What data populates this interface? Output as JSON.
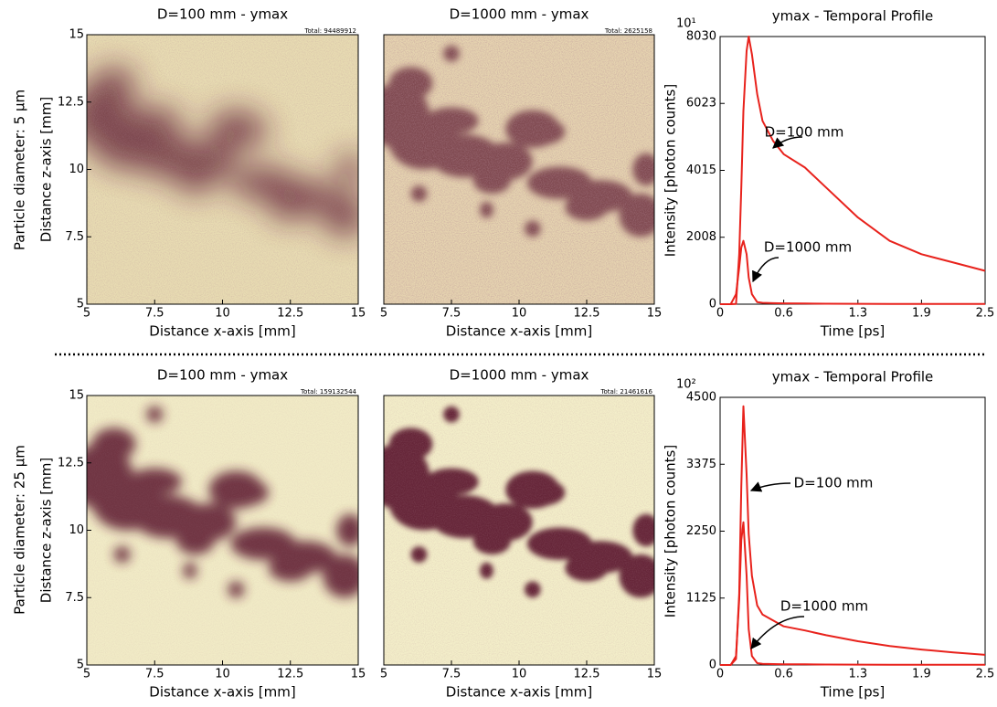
{
  "row_labels": [
    "Particle diameter: 5 µm",
    "Particle diameter: 25 µm"
  ],
  "chart_data": [
    {
      "type": "heatmap",
      "title": "D=100 mm - ymax",
      "total": "Total: 94489912",
      "xlabel": "Distance x-axis [mm]",
      "ylabel": "Distance z-axis [mm]",
      "xlim": [
        5,
        15
      ],
      "ylim": [
        5,
        15
      ],
      "xticks": [
        5,
        7.5,
        10,
        12.5,
        15
      ],
      "yticks": [
        5,
        7.5,
        10,
        12.5,
        15
      ]
    },
    {
      "type": "heatmap",
      "title": "D=1000 mm - ymax",
      "total": "Total: 2625158",
      "xlabel": "Distance x-axis [mm]",
      "xlim": [
        5,
        15
      ],
      "ylim": [
        5,
        15
      ],
      "xticks": [
        5,
        7.5,
        10,
        12.5,
        15
      ]
    },
    {
      "type": "line",
      "title": "ymax - Temporal Profile",
      "xlabel": "Time [ps]",
      "ylabel": "Intensity [photon counts]",
      "y_multiplier": "10¹",
      "xlim": [
        0,
        2.5
      ],
      "ylim": [
        0,
        8030
      ],
      "xticks": [
        0,
        0.6,
        1.3,
        1.9,
        2.5
      ],
      "yticks": [
        0,
        2008,
        4015,
        6023,
        8030
      ],
      "x": [
        0,
        0.1,
        0.15,
        0.18,
        0.2,
        0.22,
        0.25,
        0.27,
        0.3,
        0.35,
        0.4,
        0.5,
        0.6,
        0.8,
        1.0,
        1.3,
        1.6,
        1.9,
        2.2,
        2.5
      ],
      "series": [
        {
          "name": "D=100 mm",
          "color": "#e8221c",
          "values": [
            0,
            0,
            5,
            1500,
            3500,
            5800,
            7600,
            8030,
            7500,
            6300,
            5500,
            4900,
            4500,
            4100,
            3500,
            2600,
            1900,
            1500,
            1250,
            1000
          ]
        },
        {
          "name": "D=1000 mm",
          "color": "#e8221c",
          "values": [
            0,
            0,
            300,
            1100,
            1700,
            1900,
            1500,
            800,
            300,
            60,
            40,
            30,
            25,
            20,
            15,
            10,
            8,
            6,
            5,
            5
          ]
        }
      ]
    },
    {
      "type": "heatmap",
      "title": "D=100 mm - ymax",
      "total": "Total: 159132544",
      "xlabel": "Distance x-axis [mm]",
      "ylabel": "Distance z-axis [mm]",
      "xlim": [
        5,
        15
      ],
      "ylim": [
        5,
        15
      ],
      "xticks": [
        5,
        7.5,
        10,
        12.5,
        15
      ],
      "yticks": [
        5,
        7.5,
        10,
        12.5,
        15
      ]
    },
    {
      "type": "heatmap",
      "title": "D=1000 mm - ymax",
      "total": "Total: 21461616",
      "xlabel": "Distance x-axis [mm]",
      "xlim": [
        5,
        15
      ],
      "ylim": [
        5,
        15
      ],
      "xticks": [
        5,
        7.5,
        10,
        12.5,
        15
      ]
    },
    {
      "type": "line",
      "title": "ymax - Temporal Profile",
      "xlabel": "Time [ps]",
      "ylabel": "Intensity [photon counts]",
      "y_multiplier": "10²",
      "xlim": [
        0,
        2.5
      ],
      "ylim": [
        0,
        4500
      ],
      "xticks": [
        0,
        0.6,
        1.3,
        1.9,
        2.5
      ],
      "yticks": [
        0,
        1125,
        2250,
        3375,
        4500
      ],
      "x": [
        0,
        0.1,
        0.15,
        0.18,
        0.2,
        0.22,
        0.25,
        0.27,
        0.3,
        0.35,
        0.4,
        0.5,
        0.6,
        0.8,
        1.0,
        1.3,
        1.6,
        1.9,
        2.2,
        2.5
      ],
      "series": [
        {
          "name": "D=100 mm",
          "color": "#e8221c",
          "values": [
            0,
            0,
            100,
            1200,
            3000,
            4350,
            3200,
            2200,
            1500,
            1000,
            850,
            750,
            650,
            580,
            500,
            400,
            320,
            260,
            210,
            170
          ]
        },
        {
          "name": "D=1000 mm",
          "color": "#e8221c",
          "values": [
            0,
            0,
            150,
            1100,
            2100,
            2400,
            1500,
            600,
            150,
            30,
            20,
            15,
            12,
            10,
            8,
            6,
            5,
            4,
            3,
            3
          ]
        }
      ]
    }
  ]
}
